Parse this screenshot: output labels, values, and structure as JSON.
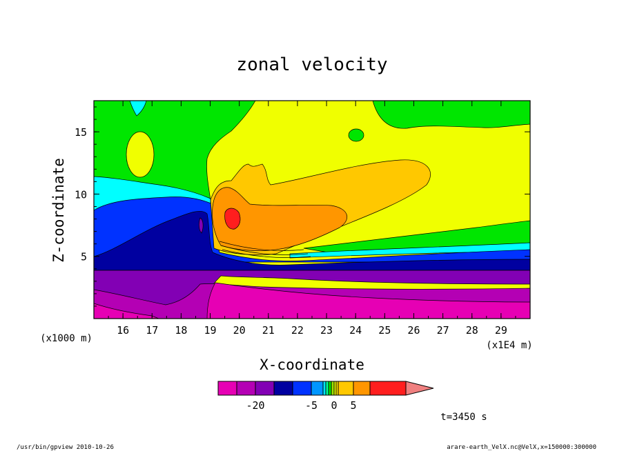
{
  "chart_data": {
    "type": "heatmap",
    "title": "zonal velocity",
    "xlabel": "X-coordinate",
    "ylabel": "Z-coordinate",
    "x_scale_label": "(x1E4 m)",
    "y_scale_label": "(x1000 m)",
    "x_ticks": [
      "16",
      "17",
      "18",
      "19",
      "20",
      "21",
      "22",
      "23",
      "24",
      "25",
      "26",
      "27",
      "28",
      "29"
    ],
    "y_ticks": [
      "5",
      "10",
      "15"
    ],
    "xlim": [
      15,
      30
    ],
    "ylim": [
      0,
      17.5
    ],
    "colorbar": {
      "labels": [
        {
          "text": "-20",
          "value": -20
        },
        {
          "text": "-5",
          "value": -5
        },
        {
          "text": "0",
          "value": 0
        },
        {
          "text": "5",
          "value": 5
        }
      ],
      "levels": [
        {
          "from": -30,
          "to": -25,
          "color": "#e600b4"
        },
        {
          "from": -25,
          "to": -20,
          "color": "#b400b4"
        },
        {
          "from": -20,
          "to": -15,
          "color": "#8200b4"
        },
        {
          "from": -15,
          "to": -10,
          "color": "#0000a0"
        },
        {
          "from": -10,
          "to": -5,
          "color": "#0032ff"
        },
        {
          "from": -5,
          "to": -4,
          "color": "#0096ff"
        },
        {
          "from": -4,
          "to": -3,
          "color": "#00e6ff"
        },
        {
          "from": -3,
          "to": -2,
          "color": "#00ff96"
        },
        {
          "from": -2,
          "to": -1,
          "color": "#00e600"
        },
        {
          "from": -1,
          "to": 0,
          "color": "#a0e600"
        },
        {
          "from": 0,
          "to": 1,
          "color": "#f0ff00"
        },
        {
          "from": 1,
          "to": 2,
          "color": "#ffe600"
        },
        {
          "from": 2,
          "to": 5,
          "color": "#ffc800"
        },
        {
          "from": 5,
          "to": 10,
          "color": "#ff9600"
        },
        {
          "from": 10,
          "to": 20,
          "color": "#ff1e1e"
        },
        {
          "from": 20,
          "to": 25,
          "color": "#f08080"
        }
      ]
    },
    "field_regions": [
      {
        "name": "deep-magenta",
        "value": -27,
        "color": "#e600b4"
      },
      {
        "name": "purple-lower",
        "value": -22,
        "color": "#b400b4"
      },
      {
        "name": "violet-layer",
        "value": -17,
        "color": "#8200b4"
      },
      {
        "name": "navy-jet",
        "value": -12,
        "color": "#0000a0"
      },
      {
        "name": "blue-band",
        "value": -7,
        "color": "#0032ff"
      },
      {
        "name": "cyan-band",
        "value": -3.5,
        "color": "#00ffff"
      },
      {
        "name": "green-upper",
        "value": -1.5,
        "color": "#00e600"
      },
      {
        "name": "yellow-background",
        "value": 0.5,
        "color": "#f0ff00"
      },
      {
        "name": "gold-plume",
        "value": 3,
        "color": "#ffc800"
      },
      {
        "name": "orange-core",
        "value": 7,
        "color": "#ff9600"
      },
      {
        "name": "red-max",
        "value": 15,
        "color": "#ff1e1e"
      }
    ],
    "annotation": "t=3450 s"
  },
  "footer": {
    "left": "/usr/bin/gpview   2010-10-26",
    "right": "arare-earth_VelX.nc@VelX,x=150000:300000"
  }
}
